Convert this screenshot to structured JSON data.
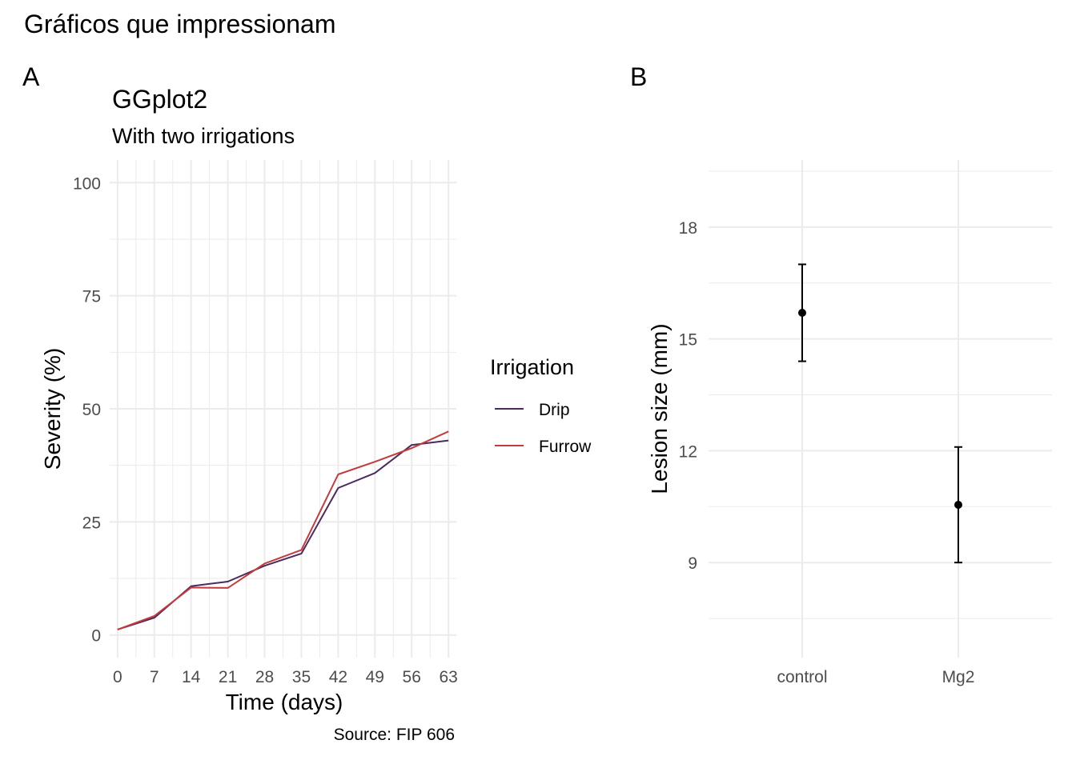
{
  "page_title": "Gráficos que impressionam",
  "chart_data": [
    {
      "type": "line",
      "tag": "A",
      "title": "GGplot2",
      "subtitle": "With two irrigations",
      "xlabel": "Time (days)",
      "ylabel": "Severity (%)",
      "caption": "Source: FIP 606",
      "x": [
        0,
        7,
        14,
        21,
        28,
        35,
        42,
        49,
        56,
        63
      ],
      "x_ticks": [
        0,
        7,
        14,
        21,
        28,
        35,
        42,
        49,
        56,
        63
      ],
      "x_ticks_label": [
        "0",
        "7",
        "14",
        "21",
        "28",
        "35",
        "42",
        "49",
        "56",
        "63"
      ],
      "xlim": [
        -1.5,
        64.5
      ],
      "y_ticks": [
        0,
        25,
        50,
        75,
        100
      ],
      "y_ticks_label": [
        "0",
        "25",
        "50",
        "75",
        "100"
      ],
      "ylim": [
        -5,
        105
      ],
      "grid": true,
      "legend": {
        "title": "Irrigation",
        "position": "right"
      },
      "series": [
        {
          "name": "Drip",
          "color": "#4b2a5e",
          "values": [
            1.2,
            3.8,
            10.8,
            11.8,
            15.3,
            18.0,
            32.5,
            35.8,
            42.0,
            43.0
          ]
        },
        {
          "name": "Furrow",
          "color": "#c33b3b",
          "values": [
            1.2,
            4.2,
            10.5,
            10.4,
            15.8,
            18.8,
            35.5,
            38.3,
            41.3,
            45.0
          ]
        }
      ]
    },
    {
      "type": "scatter",
      "subtype": "errorbar",
      "tag": "B",
      "xlabel": "",
      "ylabel": "Lesion size (mm)",
      "categories": [
        "control",
        "Mg2"
      ],
      "values": [
        15.7,
        10.55
      ],
      "error_low": [
        14.4,
        9.0
      ],
      "error_high": [
        17.0,
        12.1
      ],
      "y_ticks": [
        9,
        12,
        15,
        18
      ],
      "y_ticks_label": [
        "9",
        "12",
        "15",
        "18"
      ],
      "ylim": [
        6.45,
        19.8
      ],
      "grid": true,
      "color": "#000000"
    }
  ]
}
